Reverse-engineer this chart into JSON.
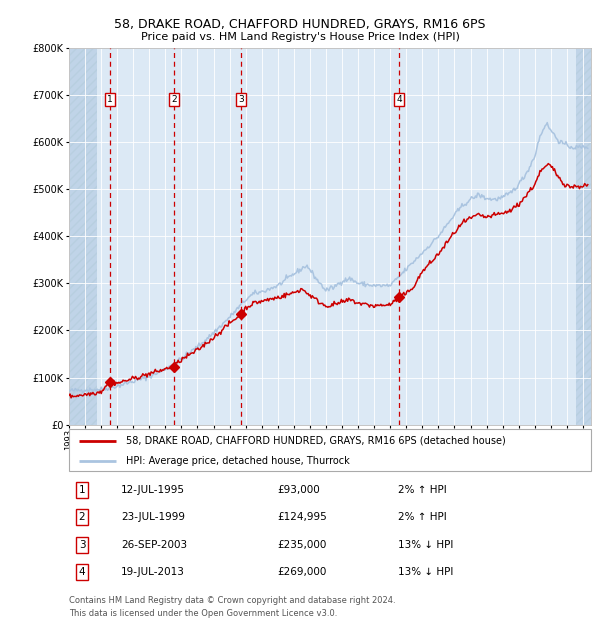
{
  "title1": "58, DRAKE ROAD, CHAFFORD HUNDRED, GRAYS, RM16 6PS",
  "title2": "Price paid vs. HM Land Registry's House Price Index (HPI)",
  "legend_line1": "58, DRAKE ROAD, CHAFFORD HUNDRED, GRAYS, RM16 6PS (detached house)",
  "legend_line2": "HPI: Average price, detached house, Thurrock",
  "footnote1": "Contains HM Land Registry data © Crown copyright and database right 2024.",
  "footnote2": "This data is licensed under the Open Government Licence v3.0.",
  "transactions": [
    {
      "num": 1,
      "date": "12-JUL-1995",
      "price": 93000,
      "pct": "2%",
      "dir": "↑",
      "year": 1995.53
    },
    {
      "num": 2,
      "date": "23-JUL-1999",
      "price": 124995,
      "pct": "2%",
      "dir": "↑",
      "year": 1999.55
    },
    {
      "num": 3,
      "date": "26-SEP-2003",
      "price": 235000,
      "pct": "13%",
      "dir": "↓",
      "year": 2003.73
    },
    {
      "num": 4,
      "date": "19-JUL-2013",
      "price": 269000,
      "pct": "13%",
      "dir": "↓",
      "year": 2013.54
    }
  ],
  "hpi_color": "#aac4e0",
  "price_color": "#cc0000",
  "marker_color": "#cc0000",
  "vline_color": "#cc0000",
  "box_color": "#cc0000",
  "bg_plot": "#dce9f5",
  "bg_hatch_color": "#c0d4e8",
  "grid_color": "#ffffff",
  "ylim": [
    0,
    800000
  ],
  "xlim_start": 1993.0,
  "xlim_end": 2025.5,
  "hatch_left_end": 1994.75,
  "hatch_right_start": 2024.58,
  "hpi_anchors": [
    [
      1993.0,
      72000
    ],
    [
      1994.0,
      74000
    ],
    [
      1995.0,
      75000
    ],
    [
      1996.0,
      82000
    ],
    [
      1997.0,
      92000
    ],
    [
      1998.0,
      102000
    ],
    [
      1999.0,
      118000
    ],
    [
      2000.0,
      140000
    ],
    [
      2001.0,
      165000
    ],
    [
      2002.0,
      195000
    ],
    [
      2003.0,
      228000
    ],
    [
      2004.0,
      265000
    ],
    [
      2004.5,
      278000
    ],
    [
      2005.0,
      282000
    ],
    [
      2006.0,
      295000
    ],
    [
      2007.0,
      320000
    ],
    [
      2007.8,
      338000
    ],
    [
      2008.5,
      305000
    ],
    [
      2009.0,
      285000
    ],
    [
      2009.5,
      292000
    ],
    [
      2010.0,
      305000
    ],
    [
      2010.5,
      310000
    ],
    [
      2011.0,
      300000
    ],
    [
      2012.0,
      295000
    ],
    [
      2013.0,
      295000
    ],
    [
      2014.0,
      330000
    ],
    [
      2015.0,
      365000
    ],
    [
      2016.0,
      400000
    ],
    [
      2017.0,
      445000
    ],
    [
      2017.5,
      465000
    ],
    [
      2018.0,
      478000
    ],
    [
      2018.5,
      488000
    ],
    [
      2019.0,
      480000
    ],
    [
      2019.5,
      478000
    ],
    [
      2020.0,
      482000
    ],
    [
      2020.5,
      492000
    ],
    [
      2021.0,
      510000
    ],
    [
      2021.5,
      535000
    ],
    [
      2022.0,
      570000
    ],
    [
      2022.3,
      610000
    ],
    [
      2022.7,
      640000
    ],
    [
      2023.0,
      625000
    ],
    [
      2023.5,
      602000
    ],
    [
      2024.0,
      592000
    ],
    [
      2024.5,
      588000
    ],
    [
      2025.3,
      590000
    ]
  ],
  "price_anchors": [
    [
      1993.0,
      60000
    ],
    [
      1994.0,
      64000
    ],
    [
      1995.0,
      70000
    ],
    [
      1995.53,
      93000
    ],
    [
      1996.0,
      88000
    ],
    [
      1997.0,
      98000
    ],
    [
      1998.0,
      108000
    ],
    [
      1999.0,
      118000
    ],
    [
      1999.55,
      124995
    ],
    [
      2000.0,
      138000
    ],
    [
      2001.0,
      158000
    ],
    [
      2002.0,
      185000
    ],
    [
      2003.0,
      215000
    ],
    [
      2003.73,
      235000
    ],
    [
      2004.0,
      248000
    ],
    [
      2004.5,
      258000
    ],
    [
      2005.0,
      262000
    ],
    [
      2006.0,
      270000
    ],
    [
      2007.0,
      280000
    ],
    [
      2007.5,
      288000
    ],
    [
      2008.0,
      275000
    ],
    [
      2008.5,
      262000
    ],
    [
      2009.0,
      252000
    ],
    [
      2009.5,
      255000
    ],
    [
      2010.0,
      260000
    ],
    [
      2010.5,
      265000
    ],
    [
      2011.0,
      258000
    ],
    [
      2012.0,
      252000
    ],
    [
      2013.0,
      255000
    ],
    [
      2013.54,
      269000
    ],
    [
      2014.0,
      278000
    ],
    [
      2014.5,
      295000
    ],
    [
      2015.0,
      325000
    ],
    [
      2016.0,
      362000
    ],
    [
      2017.0,
      408000
    ],
    [
      2017.5,
      428000
    ],
    [
      2018.0,
      438000
    ],
    [
      2018.5,
      445000
    ],
    [
      2019.0,
      440000
    ],
    [
      2019.5,
      445000
    ],
    [
      2020.0,
      448000
    ],
    [
      2020.5,
      455000
    ],
    [
      2021.0,
      468000
    ],
    [
      2021.5,
      488000
    ],
    [
      2022.0,
      510000
    ],
    [
      2022.3,
      535000
    ],
    [
      2022.7,
      548000
    ],
    [
      2022.9,
      552000
    ],
    [
      2023.2,
      540000
    ],
    [
      2023.5,
      525000
    ],
    [
      2023.8,
      512000
    ],
    [
      2024.2,
      505000
    ],
    [
      2024.5,
      505000
    ],
    [
      2025.3,
      508000
    ]
  ]
}
